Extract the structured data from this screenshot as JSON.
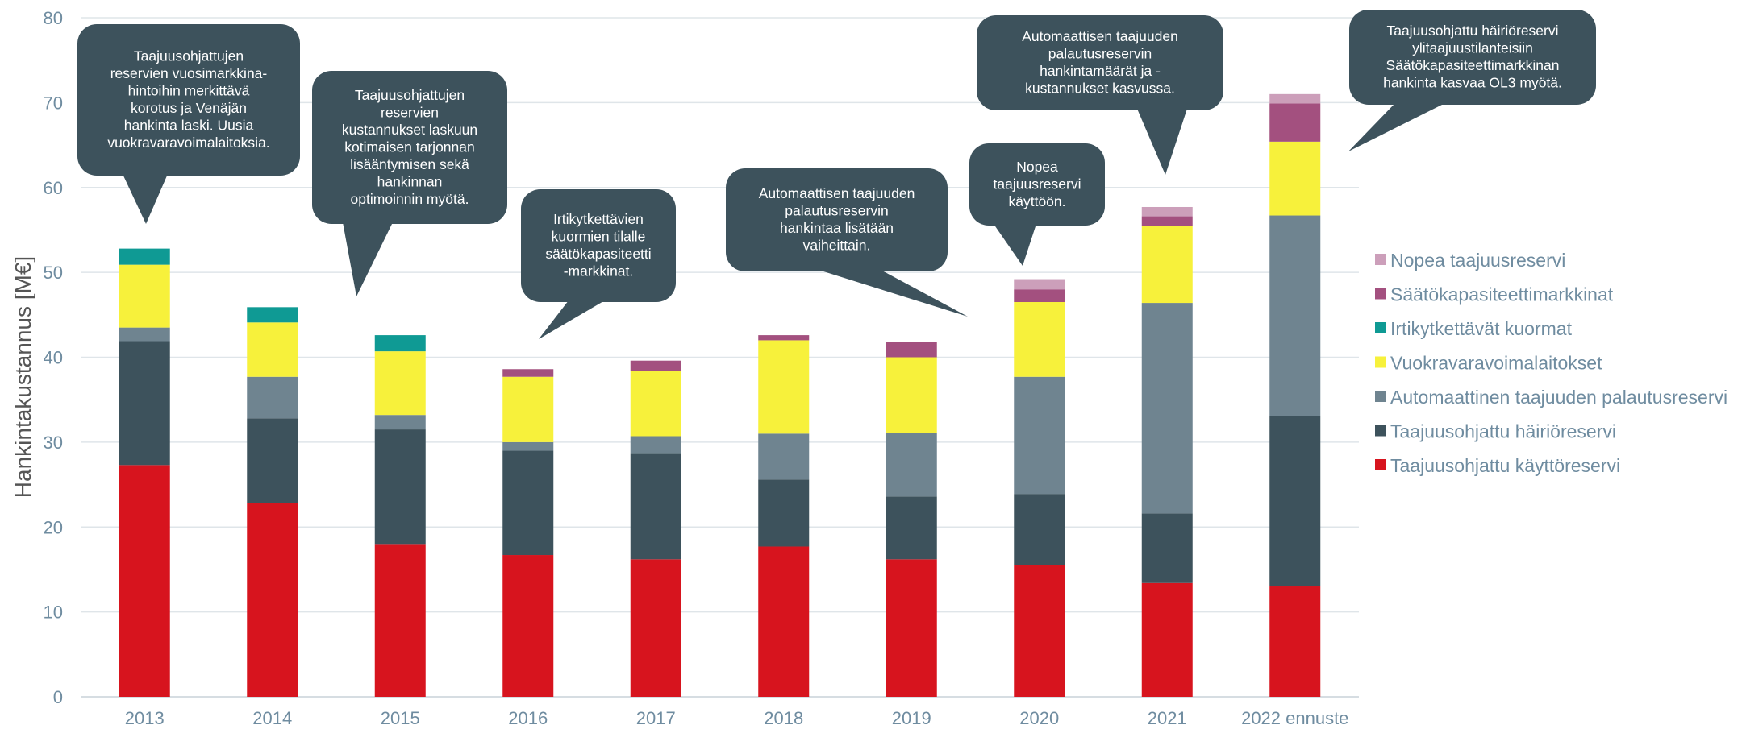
{
  "chart_data": {
    "type": "bar",
    "stacked": true,
    "title": "",
    "xlabel": "",
    "ylabel": "Hankintakustannus [M€]",
    "ylim": [
      0,
      80
    ],
    "yticks": [
      0,
      10,
      20,
      30,
      40,
      50,
      60,
      70,
      80
    ],
    "grid": true,
    "legend_position": "right",
    "categories": [
      "2013",
      "2014",
      "2015",
      "2016",
      "2017",
      "2018",
      "2019",
      "2020",
      "2021",
      "2022 ennuste"
    ],
    "series": [
      {
        "name": "Taajuusohjattu käyttöreservi",
        "color": "#d7141e",
        "values": [
          27.3,
          22.8,
          18.0,
          16.7,
          16.2,
          17.7,
          16.2,
          15.5,
          13.4,
          13.0
        ]
      },
      {
        "name": "Taajuusohjattu häiriöreservi",
        "color": "#3d525c",
        "values": [
          14.6,
          10.0,
          13.5,
          12.3,
          12.5,
          7.9,
          7.4,
          8.4,
          8.2,
          20.1
        ]
      },
      {
        "name": "Automaattinen taajuuden palautusreservi",
        "color": "#6f8490",
        "values": [
          1.6,
          4.9,
          1.7,
          1.0,
          2.0,
          5.4,
          7.5,
          13.8,
          24.8,
          23.6
        ]
      },
      {
        "name": "Vuokravaravoimalaitokset",
        "color": "#f7f13b",
        "values": [
          7.4,
          6.4,
          7.5,
          7.7,
          7.7,
          11.0,
          8.9,
          8.8,
          9.1,
          8.7
        ]
      },
      {
        "name": "Irtikytkettävät kuormat",
        "color": "#0f9a94",
        "values": [
          1.9,
          1.8,
          1.9,
          0,
          0,
          0,
          0,
          0,
          0,
          0
        ]
      },
      {
        "name": "Säätökapasiteettimarkkinat",
        "color": "#a3507f",
        "values": [
          0,
          0,
          0,
          0.9,
          1.2,
          0.6,
          1.8,
          1.5,
          1.1,
          4.5
        ]
      },
      {
        "name": "Nopea taajuusreservi",
        "color": "#cc9fba",
        "values": [
          0,
          0,
          0,
          0,
          0,
          0,
          0,
          1.2,
          1.1,
          1.1
        ]
      }
    ],
    "annotations": [
      {
        "text": [
          "Taajuusohjattujen",
          "reservien vuosimarkkina-",
          "hintoihin merkittävä",
          "korotus ja Venäjän",
          "hankinta laski. Uusia",
          "vuokravaravoimalaitoksia."
        ]
      },
      {
        "text": [
          "Taajuusohjattujen",
          "reservien",
          "kustannukset laskuun",
          "kotimaisen tarjonnan",
          "lisääntymisen sekä",
          "hankinnan",
          "optimoinnin myötä."
        ]
      },
      {
        "text": [
          "Irtikytkettävien",
          "kuormien tilalle",
          "säätökapasiteetti",
          "-markkinat."
        ]
      },
      {
        "text": [
          "Automaattisen taajuuden",
          "palautusreservin",
          "hankintaa lisätään",
          "vaiheittain."
        ]
      },
      {
        "text": [
          "Nopea",
          "taajuusreservi",
          "käyttöön."
        ]
      },
      {
        "text": [
          "Automaattisen taajuuden",
          "palautusreservin",
          "hankintamäärät ja -",
          "kustannukset kasvussa."
        ]
      },
      {
        "text": [
          "Taajuusohjattu häiriöreservi",
          "ylitaajuustilanteisiin",
          "Säätökapasiteettimarkkinan",
          "hankinta kasvaa OL3 myötä."
        ]
      }
    ],
    "callout_color": "#3d525c"
  }
}
